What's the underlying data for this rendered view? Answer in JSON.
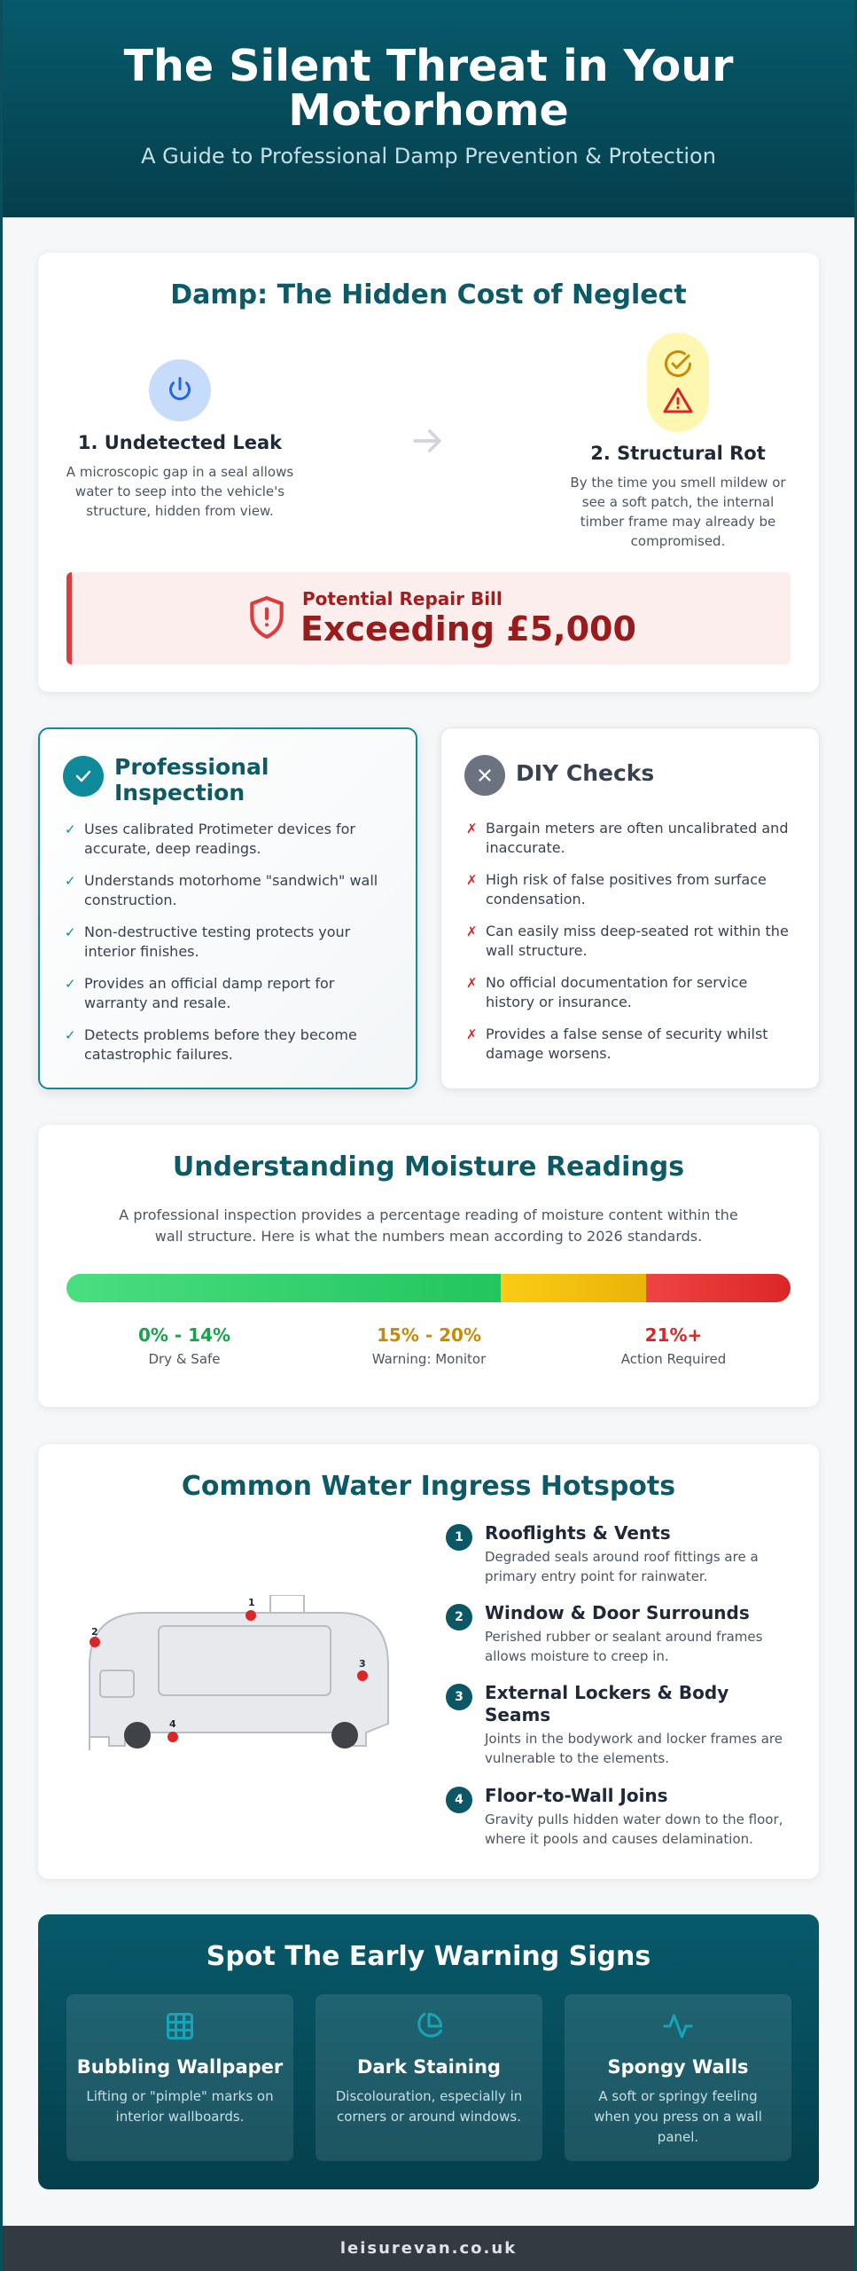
{
  "header": {
    "title": "The Silent Threat in Your Motorhome",
    "subtitle": "A Guide to Professional Damp Prevention & Protection"
  },
  "neglect": {
    "title": "Damp: The Hidden Cost of Neglect",
    "step1": {
      "title": "1. Undetected Leak",
      "text": "A microscopic gap in a seal allows water to seep into the vehicle's structure, hidden from view.",
      "icon": "power-drop-icon"
    },
    "step2": {
      "title": "2. Structural Rot",
      "text": "By the time you smell mildew or see a soft patch, the internal timber frame may already be compromised.",
      "icon": "check-warning-icon"
    },
    "bill": {
      "label": "Potential Repair Bill",
      "amount": "Exceeding £5,000"
    }
  },
  "professional": {
    "title": "Professional Inspection",
    "items": [
      "Uses calibrated Protimeter devices for accurate, deep readings.",
      "Understands motorhome \"sandwich\" wall construction.",
      "Non-destructive testing protects your interior finishes.",
      "Provides an official damp report for warranty and resale.",
      "Detects problems before they become catastrophic failures."
    ]
  },
  "diy": {
    "title": "DIY Checks",
    "items": [
      "Bargain meters are often uncalibrated and inaccurate.",
      "High risk of false positives from surface condensation.",
      "Can easily miss deep-seated rot within the wall structure.",
      "No official documentation for service history or insurance.",
      "Provides a false sense of security whilst damage worsens."
    ]
  },
  "moisture": {
    "title": "Understanding Moisture Readings",
    "intro": "A professional inspection provides a percentage reading of moisture content within the wall structure. Here is what the numbers mean according to 2026 standards.",
    "scale": [
      {
        "range": "0% - 14%",
        "label": "Dry & Safe",
        "color": "#16a34a",
        "share": 0.6
      },
      {
        "range": "15% - 20%",
        "label": "Warning: Monitor",
        "color": "#ca8a04",
        "share": 0.2
      },
      {
        "range": "21%+",
        "label": "Action Required",
        "color": "#dc2626",
        "share": 0.2
      }
    ]
  },
  "hotspots": {
    "title": "Common Water Ingress Hotspots",
    "markers": [
      "1",
      "2",
      "3",
      "4"
    ],
    "items": [
      {
        "num": "1",
        "title": "Rooflights & Vents",
        "text": "Degraded seals around roof fittings are a primary entry point for rainwater."
      },
      {
        "num": "2",
        "title": "Window & Door Surrounds",
        "text": "Perished rubber or sealant around frames allows moisture to creep in."
      },
      {
        "num": "3",
        "title": "External Lockers & Body Seams",
        "text": "Joints in the bodywork and locker frames are vulnerable to the elements."
      },
      {
        "num": "4",
        "title": "Floor-to-Wall Joins",
        "text": "Gravity pulls hidden water down to the floor, where it pools and causes delamination."
      }
    ]
  },
  "warnings": {
    "title": "Spot The Early Warning Signs",
    "items": [
      {
        "title": "Bubbling Wallpaper",
        "text": "Lifting or \"pimple\" marks on interior wallboards.",
        "icon": "grid-icon"
      },
      {
        "title": "Dark Staining",
        "text": "Discolouration, especially in corners or around windows.",
        "icon": "pie-chart-icon"
      },
      {
        "title": "Spongy Walls",
        "text": "A soft or springy feeling when you press on a wall panel.",
        "icon": "activity-icon"
      }
    ]
  },
  "footer": {
    "text": "leisurevan.co.uk"
  },
  "colors": {
    "brand": "#0b5a66",
    "danger": "#dc2626",
    "warning": "#eab308",
    "success": "#22c55e"
  }
}
